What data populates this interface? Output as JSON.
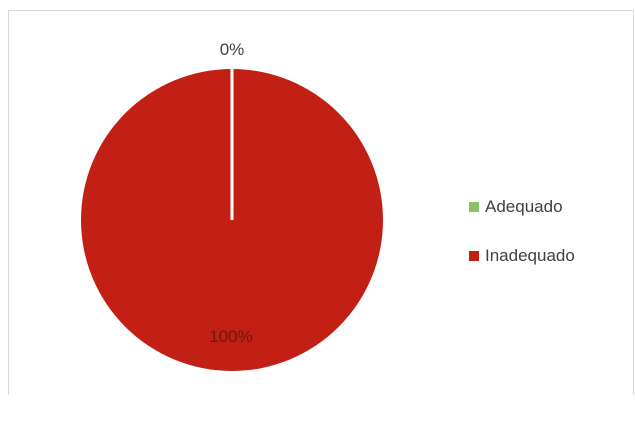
{
  "chart_data": {
    "type": "pie",
    "categories": [
      "Adequado",
      "Inadequado"
    ],
    "values": [
      0,
      100
    ],
    "data_labels": [
      "0%",
      "100%"
    ],
    "colors": [
      "#8cbf6a",
      "#c32015"
    ],
    "title": "",
    "legend": "right"
  },
  "legend": {
    "items": [
      {
        "label": "Adequado",
        "color": "#8cbf6a"
      },
      {
        "label": "Inadequado",
        "color": "#c32015"
      }
    ]
  }
}
